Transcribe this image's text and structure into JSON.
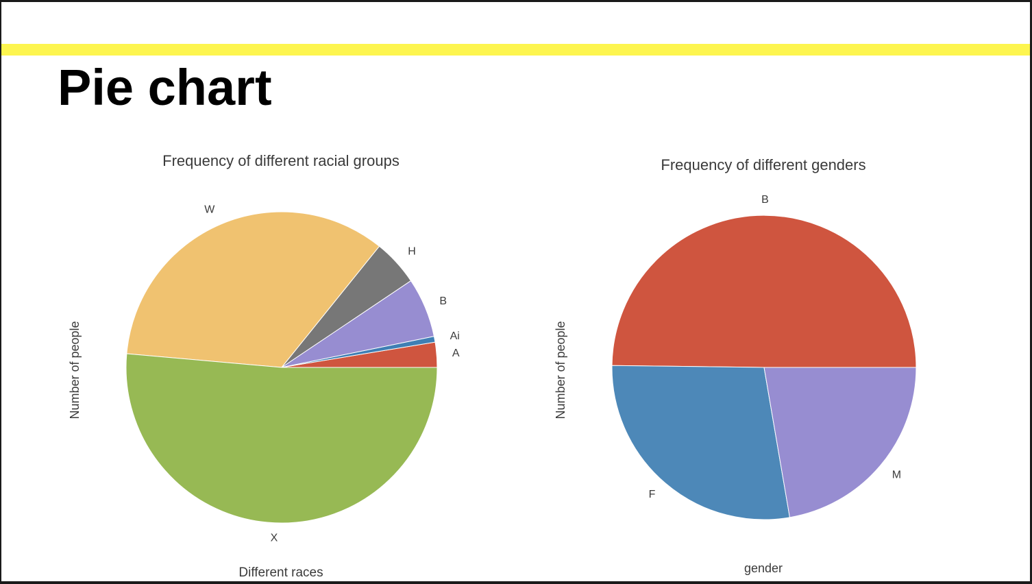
{
  "slide": {
    "title": "Pie chart",
    "accent_color": "#fdf54f"
  },
  "chart_data": [
    {
      "type": "pie",
      "title": "Frequency of different racial groups",
      "xlabel": "Different races",
      "ylabel": "Number of people",
      "categories": [
        "A",
        "Ai",
        "B",
        "H",
        "W",
        "X"
      ],
      "values": [
        2.6,
        0.6,
        6.2,
        4.8,
        34.4,
        51.4
      ],
      "colors": [
        "#cf553f",
        "#3f7fb4",
        "#978dd1",
        "#777777",
        "#f0c270",
        "#97b954"
      ],
      "start_angle": 0,
      "direction": "counterclockwise"
    },
    {
      "type": "pie",
      "title": "Frequency of different genders",
      "xlabel": "gender",
      "ylabel": "Number of people",
      "categories": [
        "B",
        "F",
        "M"
      ],
      "values": [
        49.8,
        27.9,
        22.3
      ],
      "colors": [
        "#cf553f",
        "#4d88b8",
        "#978dd1"
      ],
      "start_angle": 0,
      "direction": "counterclockwise"
    }
  ]
}
